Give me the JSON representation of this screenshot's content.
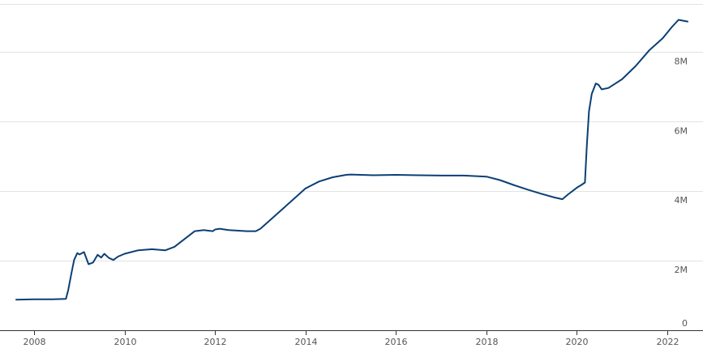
{
  "colors": {
    "line": "#0b3f75",
    "grid": "#e3e3e3",
    "axis": "#333333",
    "tick_text": "#555555"
  },
  "chart_data": {
    "type": "line",
    "title": "",
    "xlabel": "",
    "ylabel": "",
    "grid": true,
    "legend": "none",
    "xlim": [
      2007.6,
      2022.45
    ],
    "ylim": [
      0,
      9.5
    ],
    "x_ticks": [
      {
        "value": 2008,
        "label": "2008"
      },
      {
        "value": 2010,
        "label": "2010"
      },
      {
        "value": 2012,
        "label": "2012"
      },
      {
        "value": 2014,
        "label": "2014"
      },
      {
        "value": 2016,
        "label": "2016"
      },
      {
        "value": 2018,
        "label": "2018"
      },
      {
        "value": 2020,
        "label": "2020"
      },
      {
        "value": 2022,
        "label": "2022"
      }
    ],
    "y_ticks": [
      {
        "value": 0,
        "label": "0"
      },
      {
        "value": 2,
        "label": "2M"
      },
      {
        "value": 4,
        "label": "4M"
      },
      {
        "value": 6,
        "label": "6M"
      },
      {
        "value": 8,
        "label": "8M"
      }
    ],
    "series": [
      {
        "values_unit": "millions",
        "points": [
          [
            2007.6,
            0.88
          ],
          [
            2008.0,
            0.89
          ],
          [
            2008.4,
            0.89
          ],
          [
            2008.7,
            0.9
          ],
          [
            2008.75,
            1.15
          ],
          [
            2008.83,
            1.7
          ],
          [
            2008.88,
            2.02
          ],
          [
            2008.95,
            2.22
          ],
          [
            2009.0,
            2.18
          ],
          [
            2009.1,
            2.25
          ],
          [
            2009.2,
            1.9
          ],
          [
            2009.3,
            1.95
          ],
          [
            2009.4,
            2.17
          ],
          [
            2009.48,
            2.09
          ],
          [
            2009.55,
            2.2
          ],
          [
            2009.65,
            2.08
          ],
          [
            2009.75,
            2.02
          ],
          [
            2009.85,
            2.12
          ],
          [
            2010.0,
            2.2
          ],
          [
            2010.3,
            2.3
          ],
          [
            2010.6,
            2.33
          ],
          [
            2010.9,
            2.3
          ],
          [
            2011.1,
            2.4
          ],
          [
            2011.3,
            2.6
          ],
          [
            2011.55,
            2.85
          ],
          [
            2011.75,
            2.88
          ],
          [
            2011.95,
            2.85
          ],
          [
            2012.0,
            2.9
          ],
          [
            2012.1,
            2.92
          ],
          [
            2012.3,
            2.88
          ],
          [
            2012.7,
            2.85
          ],
          [
            2012.9,
            2.85
          ],
          [
            2013.0,
            2.92
          ],
          [
            2013.2,
            3.15
          ],
          [
            2013.5,
            3.5
          ],
          [
            2013.8,
            3.85
          ],
          [
            2014.0,
            4.08
          ],
          [
            2014.3,
            4.28
          ],
          [
            2014.6,
            4.4
          ],
          [
            2014.9,
            4.47
          ],
          [
            2015.0,
            4.48
          ],
          [
            2015.5,
            4.46
          ],
          [
            2016.0,
            4.47
          ],
          [
            2016.5,
            4.46
          ],
          [
            2017.0,
            4.45
          ],
          [
            2017.5,
            4.45
          ],
          [
            2018.0,
            4.42
          ],
          [
            2018.3,
            4.32
          ],
          [
            2018.6,
            4.18
          ],
          [
            2018.9,
            4.05
          ],
          [
            2019.2,
            3.93
          ],
          [
            2019.5,
            3.82
          ],
          [
            2019.68,
            3.77
          ],
          [
            2019.8,
            3.9
          ],
          [
            2020.0,
            4.1
          ],
          [
            2020.1,
            4.18
          ],
          [
            2020.18,
            4.25
          ],
          [
            2020.22,
            5.3
          ],
          [
            2020.27,
            6.3
          ],
          [
            2020.33,
            6.8
          ],
          [
            2020.42,
            7.1
          ],
          [
            2020.48,
            7.06
          ],
          [
            2020.55,
            6.93
          ],
          [
            2020.7,
            6.97
          ],
          [
            2021.0,
            7.22
          ],
          [
            2021.3,
            7.6
          ],
          [
            2021.6,
            8.05
          ],
          [
            2021.9,
            8.4
          ],
          [
            2022.1,
            8.72
          ],
          [
            2022.25,
            8.93
          ],
          [
            2022.45,
            8.88
          ]
        ]
      }
    ]
  }
}
